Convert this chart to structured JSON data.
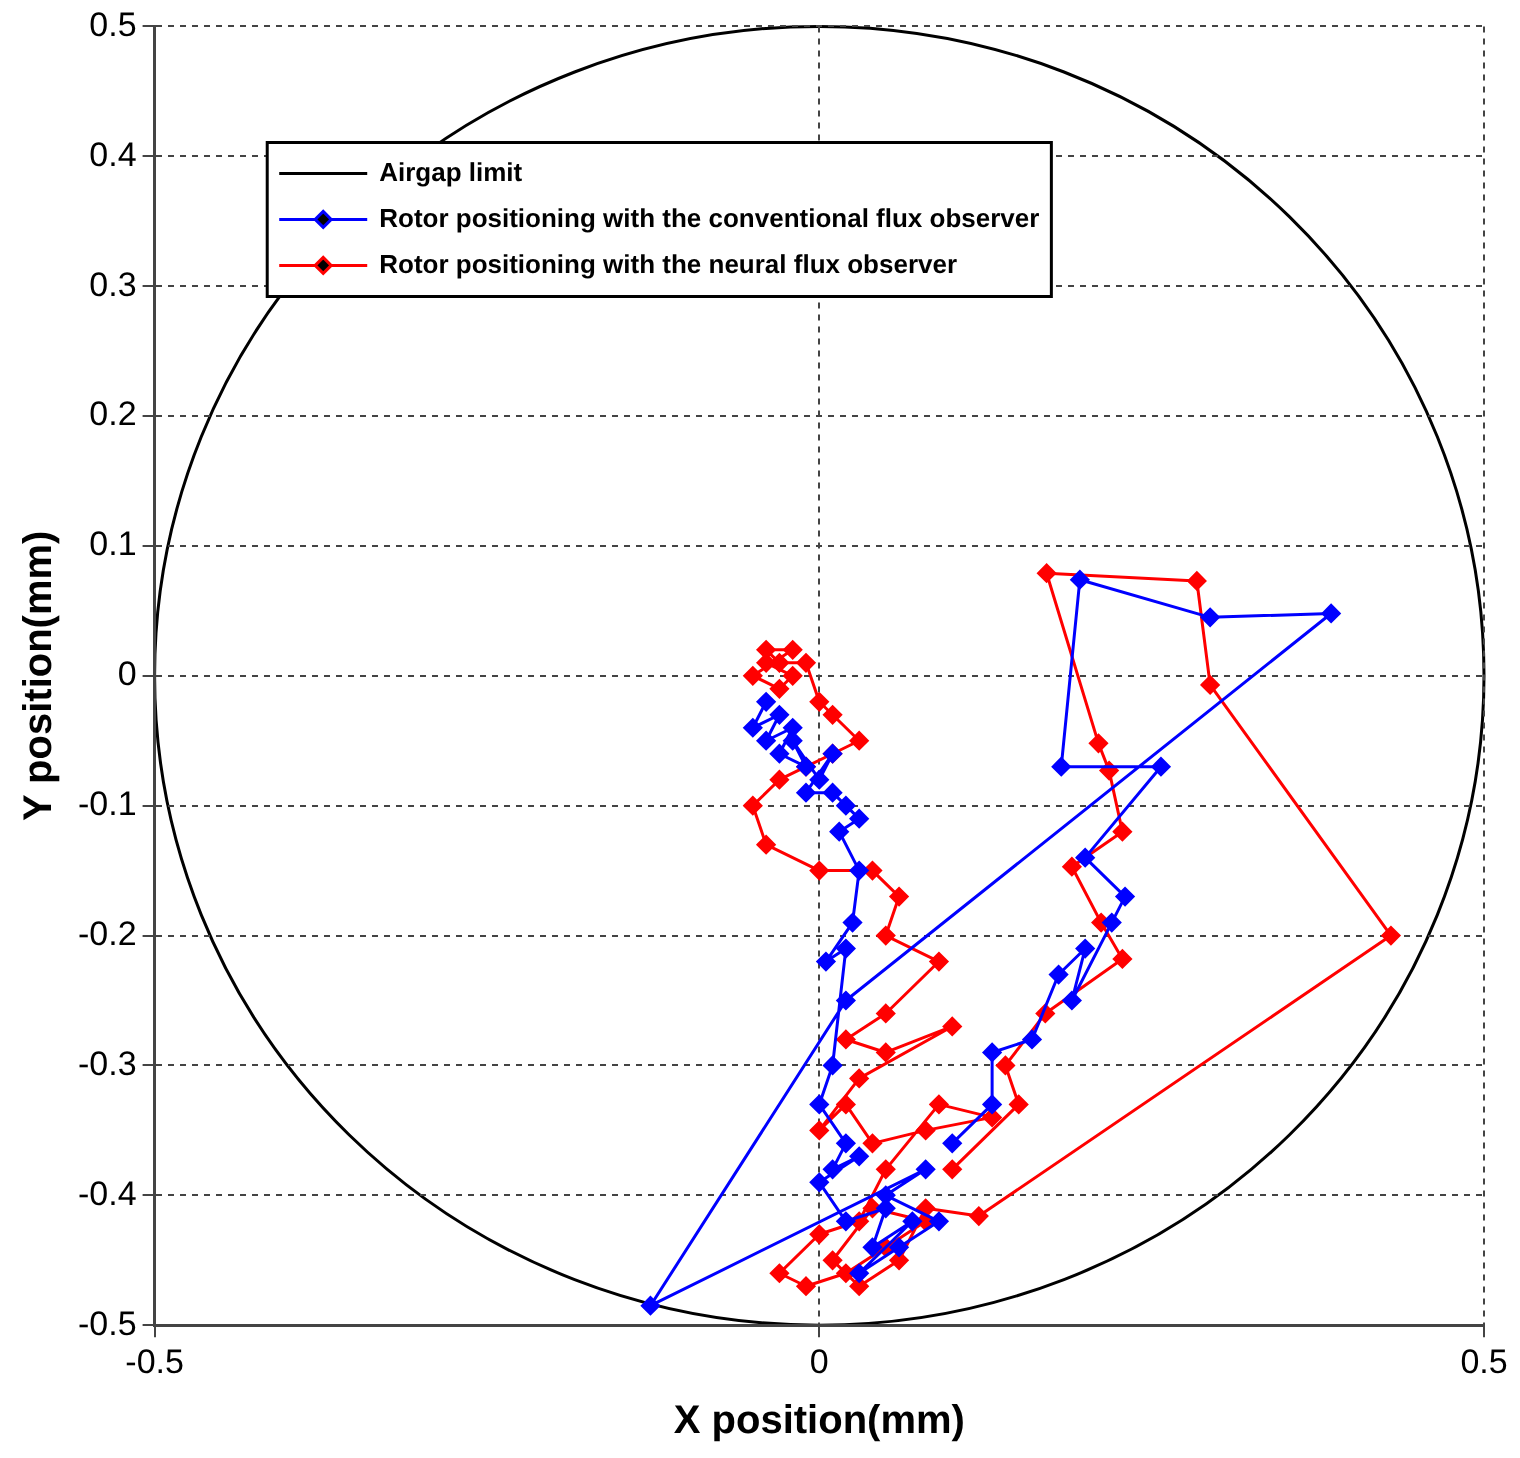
{
  "chart_data": {
    "type": "line",
    "xlabel": "X position(mm)",
    "ylabel": "Y position(mm)",
    "xlim": [
      -0.5,
      0.5
    ],
    "xticks": [
      -0.5,
      0,
      0.5
    ],
    "ylim": [
      -0.5,
      0.5
    ],
    "yticks": [
      -0.5,
      -0.4,
      -0.3,
      -0.2,
      -0.1,
      0,
      0.1,
      0.2,
      0.3,
      0.4,
      0.5
    ],
    "grid": true,
    "legend": "top",
    "annotations": [
      "Airgap limit"
    ],
    "series": [
      {
        "name": "Rotor positioning with the conventional flux observer",
        "color": "#0000ff",
        "marker": "diamond",
        "x": [
          -0.04,
          -0.05,
          -0.03,
          -0.04,
          -0.02,
          -0.03,
          -0.01,
          -0.02,
          0,
          0.01,
          -0.01,
          0.01,
          0.02,
          0.03,
          0.015,
          0.03,
          0.025,
          0.005,
          0.02,
          0.01,
          0,
          0.02,
          0.01,
          0.03,
          0,
          0.02,
          0.05,
          0.04,
          0.07,
          0.03,
          0.06,
          0.09,
          0.05,
          0.08,
          -0.127,
          0.02,
          0.385,
          0.294,
          0.196,
          0.182,
          0.257,
          0.2,
          0.23,
          0.22,
          0.19,
          0.2,
          0.18,
          0.16,
          0.13,
          0.13,
          0.1
        ],
        "values": [
          -0.02,
          -0.04,
          -0.03,
          -0.05,
          -0.04,
          -0.06,
          -0.07,
          -0.05,
          -0.08,
          -0.06,
          -0.09,
          -0.09,
          -0.1,
          -0.11,
          -0.12,
          -0.15,
          -0.19,
          -0.22,
          -0.21,
          -0.3,
          -0.33,
          -0.36,
          -0.38,
          -0.37,
          -0.39,
          -0.42,
          -0.41,
          -0.44,
          -0.42,
          -0.46,
          -0.44,
          -0.42,
          -0.4,
          -0.38,
          -0.485,
          -0.25,
          0.048,
          0.045,
          0.074,
          -0.07,
          -0.07,
          -0.14,
          -0.17,
          -0.19,
          -0.25,
          -0.21,
          -0.23,
          -0.28,
          -0.29,
          -0.33,
          -0.36
        ]
      },
      {
        "name": "Rotor positioning with the neural flux observer",
        "color": "#ff0000",
        "marker": "diamond",
        "x": [
          -0.03,
          -0.04,
          -0.02,
          -0.05,
          -0.03,
          -0.02,
          -0.04,
          -0.01,
          0,
          0.01,
          0.03,
          0.01,
          -0.01,
          -0.03,
          -0.05,
          -0.04,
          0,
          0.04,
          0.06,
          0.05,
          0.09,
          0.05,
          0.02,
          0.05,
          0.1,
          0.03,
          0,
          0.02,
          0.04,
          0.08,
          0.13,
          0.09,
          0.05,
          0.03,
          0,
          -0.03,
          -0.01,
          0.02,
          0.05,
          0.08,
          0.04,
          0.01,
          0.03,
          0.06,
          0.08,
          0.12,
          0.43,
          0.294,
          0.284,
          0.171,
          0.21,
          0.218,
          0.228,
          0.19,
          0.212,
          0.228,
          0.17,
          0.14,
          0.15,
          0.1
        ],
        "values": [
          0.01,
          0.02,
          0.02,
          0,
          -0.01,
          0,
          0.01,
          0.01,
          -0.02,
          -0.03,
          -0.05,
          -0.06,
          -0.07,
          -0.08,
          -0.1,
          -0.13,
          -0.15,
          -0.15,
          -0.17,
          -0.2,
          -0.22,
          -0.26,
          -0.28,
          -0.29,
          -0.27,
          -0.31,
          -0.35,
          -0.33,
          -0.36,
          -0.35,
          -0.34,
          -0.33,
          -0.38,
          -0.42,
          -0.43,
          -0.46,
          -0.47,
          -0.46,
          -0.44,
          -0.42,
          -0.41,
          -0.45,
          -0.47,
          -0.45,
          -0.41,
          -0.416,
          -0.2,
          -0.007,
          0.073,
          0.079,
          -0.052,
          -0.073,
          -0.12,
          -0.147,
          -0.19,
          -0.218,
          -0.26,
          -0.3,
          -0.33,
          -0.38
        ]
      }
    ]
  }
}
